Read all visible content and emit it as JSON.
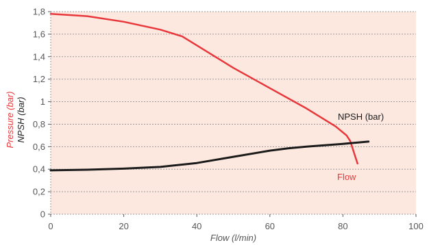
{
  "colors": {
    "plot_background": "#fde8e0",
    "grid": "#9a9a9a",
    "flow": "#e8373a",
    "npsh": "#1a1a1a",
    "axis_text": "#555555"
  },
  "chart_data": {
    "type": "line",
    "xlabel": "Flow (l/min)",
    "ylabel": "Pressure (bar)",
    "ylabel_secondary": "NPSH (bar)",
    "xlim": [
      0,
      100
    ],
    "ylim": [
      0,
      1.8
    ],
    "x_ticks": [
      "0",
      "20",
      "40",
      "60",
      "80",
      "100"
    ],
    "y_ticks": [
      "0",
      "0,2",
      "0,4",
      "0,6",
      "0,8",
      "1",
      "1,2",
      "1,4",
      "1,6",
      "1,8"
    ],
    "grid": true,
    "series": [
      {
        "name": "Flow",
        "color": "#e8373a",
        "x": [
          0,
          10,
          20,
          30,
          36,
          40,
          50,
          60,
          70,
          78,
          81,
          82,
          83,
          84
        ],
        "y": [
          1.78,
          1.76,
          1.71,
          1.64,
          1.58,
          1.5,
          1.3,
          1.12,
          0.94,
          0.78,
          0.7,
          0.65,
          0.55,
          0.45
        ]
      },
      {
        "name": "NPSH (bar)",
        "color": "#1a1a1a",
        "x": [
          0,
          10,
          20,
          30,
          40,
          50,
          60,
          65,
          70,
          80,
          87
        ],
        "y": [
          0.39,
          0.395,
          0.405,
          0.42,
          0.455,
          0.51,
          0.565,
          0.585,
          0.6,
          0.625,
          0.645
        ]
      }
    ]
  }
}
